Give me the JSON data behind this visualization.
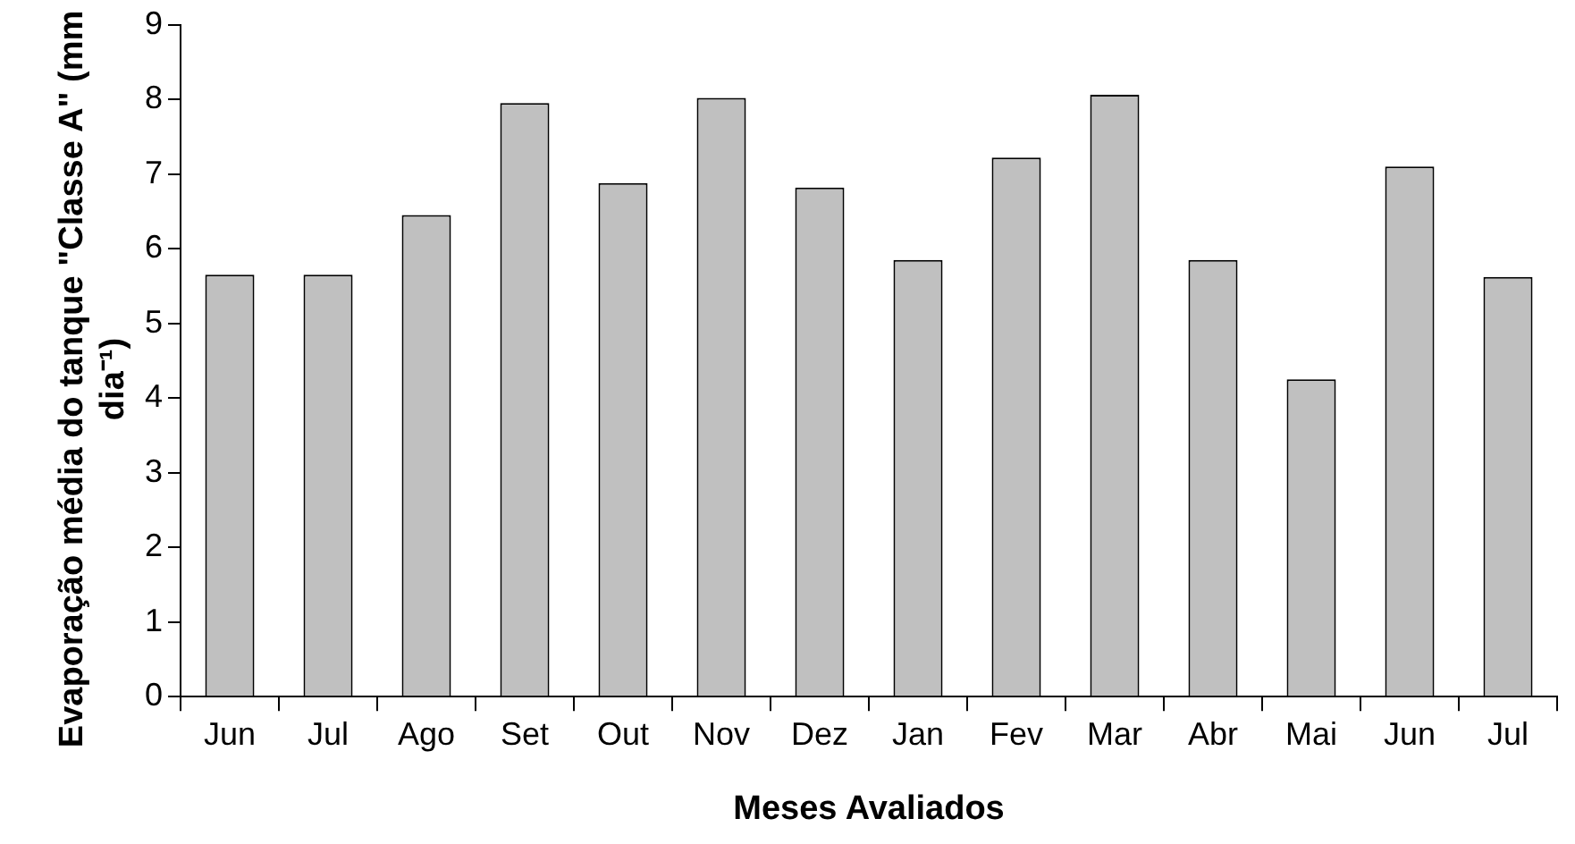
{
  "chart_data": {
    "type": "bar",
    "xlabel": "Meses Avaliados",
    "ylabel": "Evaporação média do tanque \"Classe A\" (mm dia⁻¹)",
    "categories": [
      "Jun",
      "Jul",
      "Ago",
      "Set",
      "Out",
      "Nov",
      "Dez",
      "Jan",
      "Fev",
      "Mar",
      "Abr",
      "Mai",
      "Jun",
      "Jul"
    ],
    "values": [
      5.65,
      5.65,
      6.45,
      7.95,
      6.88,
      8.02,
      6.82,
      5.85,
      7.22,
      8.06,
      5.85,
      4.25,
      7.1,
      5.62
    ],
    "color": "#c0c0c0",
    "ylim": [
      0,
      9
    ],
    "yticks": [
      0,
      1,
      2,
      3,
      4,
      5,
      6,
      7,
      8,
      9
    ],
    "grid": false,
    "legend": false
  }
}
